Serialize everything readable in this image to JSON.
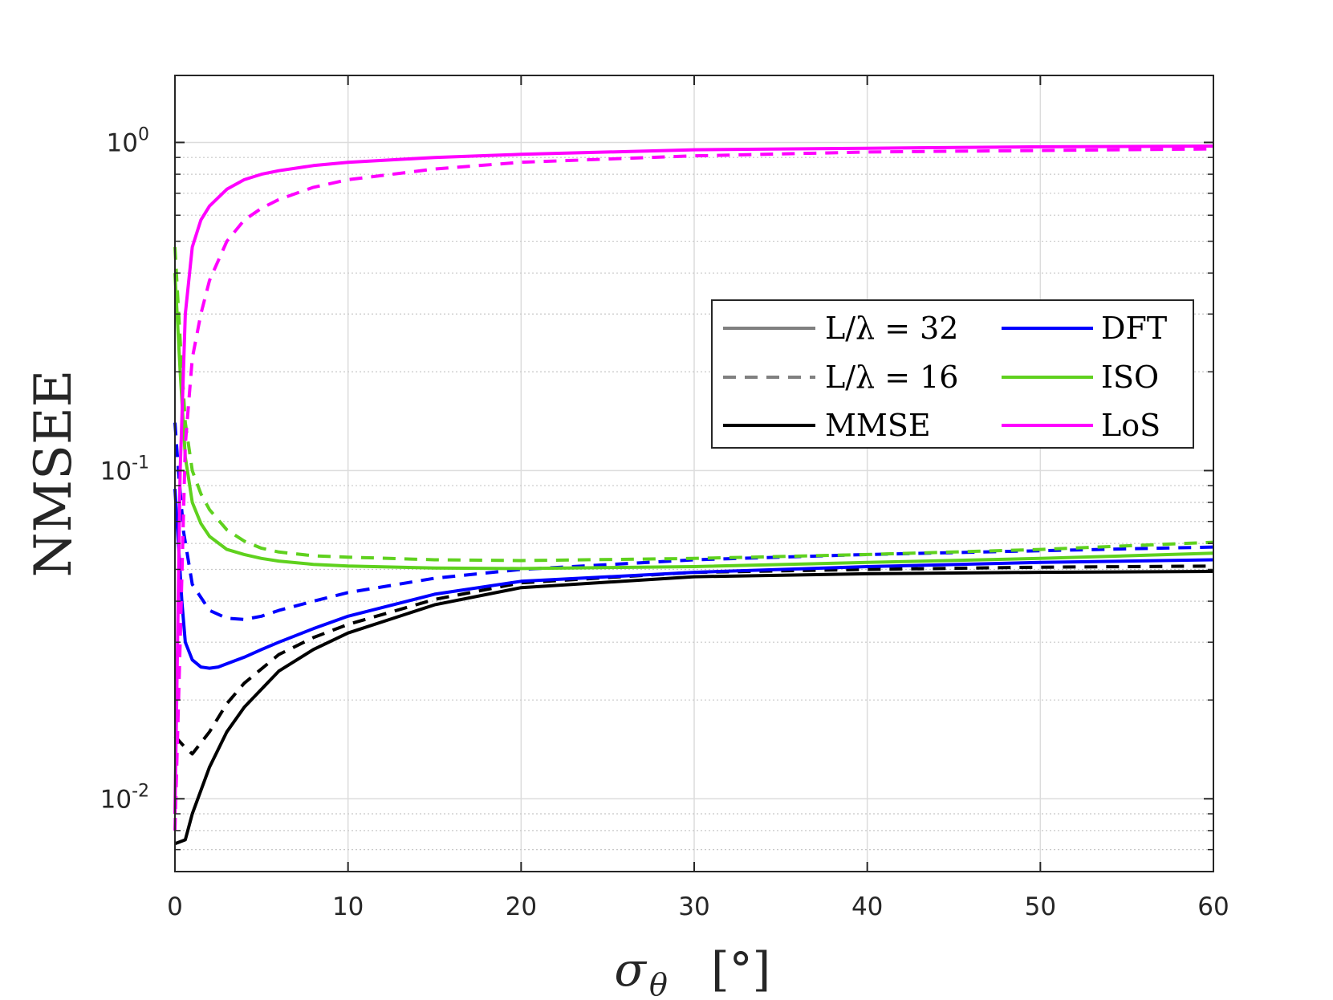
{
  "chart_data": {
    "type": "line",
    "title": "",
    "xlabel": "σ",
    "xlabel_subscript": "θ",
    "xlabel_unit": "[°]",
    "ylabel": "NMSEE",
    "xlim": [
      0,
      60
    ],
    "ylim": [
      0.006,
      1.6
    ],
    "yscale": "log",
    "grid": true,
    "minor_grid_y": true,
    "legend_position": "upper-right inset",
    "x_ticks": [
      0,
      10,
      20,
      30,
      40,
      50,
      60
    ],
    "y_ticks": [
      {
        "value": 0.01,
        "base": "10",
        "exp": "-2"
      },
      {
        "value": 0.1,
        "base": "10",
        "exp": "-1"
      },
      {
        "value": 1,
        "base": "10",
        "exp": "0"
      }
    ],
    "legend": [
      {
        "label": "L/λ = 32",
        "color": "#808080",
        "style": "solid"
      },
      {
        "label": "L/λ = 16",
        "color": "#808080",
        "style": "dashed"
      },
      {
        "label": "MMSE",
        "color": "#000000",
        "style": "solid"
      },
      {
        "label": "DFT",
        "color": "#0000ff",
        "style": "solid"
      },
      {
        "label": "ISO",
        "color": "#5fd11e",
        "style": "solid"
      },
      {
        "label": "LoS",
        "color": "#ff00ff",
        "style": "solid"
      }
    ],
    "series": [
      {
        "method": "MMSE",
        "array": "L/λ = 32",
        "color": "#000000",
        "dash": false,
        "x": [
          0,
          0.6,
          1,
          2,
          3,
          4,
          6,
          8,
          10,
          15,
          20,
          30,
          40,
          50,
          60
        ],
        "y": [
          0.0073,
          0.0075,
          0.009,
          0.0125,
          0.016,
          0.019,
          0.0245,
          0.0285,
          0.032,
          0.039,
          0.044,
          0.0475,
          0.0485,
          0.049,
          0.0493
        ]
      },
      {
        "method": "MMSE",
        "array": "L/λ = 16",
        "color": "#000000",
        "dash": true,
        "x": [
          0,
          0.5,
          1,
          2,
          3,
          4,
          6,
          8,
          10,
          15,
          20,
          30,
          40,
          50,
          60
        ],
        "y": [
          0.0155,
          0.0145,
          0.0137,
          0.016,
          0.0195,
          0.0225,
          0.0275,
          0.031,
          0.034,
          0.0405,
          0.0455,
          0.049,
          0.05,
          0.0508,
          0.0512
        ]
      },
      {
        "method": "DFT",
        "array": "L/λ = 32",
        "color": "#0000ff",
        "dash": false,
        "x": [
          0,
          0.2,
          0.4,
          0.6,
          1,
          1.5,
          2,
          2.5,
          3,
          4,
          5,
          6,
          8,
          10,
          15,
          20,
          30,
          40,
          50,
          60
        ],
        "y": [
          0.088,
          0.06,
          0.04,
          0.03,
          0.0265,
          0.0252,
          0.025,
          0.0252,
          0.0258,
          0.027,
          0.0285,
          0.03,
          0.033,
          0.036,
          0.042,
          0.046,
          0.049,
          0.051,
          0.0525,
          0.0535
        ]
      },
      {
        "method": "DFT",
        "array": "L/λ = 16",
        "color": "#0000ff",
        "dash": true,
        "x": [
          0,
          0.2,
          0.5,
          1,
          2,
          3,
          4,
          5,
          6,
          8,
          10,
          15,
          20,
          30,
          40,
          50,
          60
        ],
        "y": [
          0.14,
          0.1,
          0.065,
          0.045,
          0.0375,
          0.0355,
          0.0352,
          0.036,
          0.0375,
          0.04,
          0.0425,
          0.047,
          0.05,
          0.0535,
          0.0555,
          0.057,
          0.0585
        ]
      },
      {
        "method": "ISO",
        "array": "L/λ = 32",
        "color": "#5fd11e",
        "dash": false,
        "x": [
          0,
          0.3,
          0.6,
          1,
          1.5,
          2,
          3,
          4,
          5,
          6,
          8,
          10,
          15,
          20,
          30,
          40,
          50,
          60
        ],
        "y": [
          0.4,
          0.2,
          0.11,
          0.08,
          0.069,
          0.063,
          0.0575,
          0.0555,
          0.054,
          0.053,
          0.0518,
          0.0512,
          0.0505,
          0.0503,
          0.051,
          0.0525,
          0.054,
          0.056
        ]
      },
      {
        "method": "ISO",
        "array": "L/λ = 16",
        "color": "#5fd11e",
        "dash": true,
        "x": [
          0,
          0.3,
          0.6,
          1,
          1.5,
          2,
          3,
          4,
          5,
          6,
          8,
          10,
          15,
          20,
          30,
          40,
          50,
          60
        ],
        "y": [
          0.48,
          0.25,
          0.14,
          0.1,
          0.085,
          0.076,
          0.066,
          0.061,
          0.058,
          0.0565,
          0.055,
          0.0545,
          0.0535,
          0.0532,
          0.054,
          0.0555,
          0.0575,
          0.0605
        ]
      },
      {
        "method": "LoS",
        "array": "L/λ = 32",
        "color": "#ff00ff",
        "dash": false,
        "x": [
          0,
          0.3,
          0.6,
          1,
          1.5,
          2,
          3,
          4,
          5,
          6,
          8,
          10,
          15,
          20,
          30,
          40,
          50,
          60
        ],
        "y": [
          0.009,
          0.1,
          0.3,
          0.48,
          0.58,
          0.64,
          0.72,
          0.77,
          0.8,
          0.82,
          0.85,
          0.87,
          0.9,
          0.92,
          0.95,
          0.96,
          0.97,
          0.975
        ]
      },
      {
        "method": "LoS",
        "array": "L/λ = 16",
        "color": "#ff00ff",
        "dash": true,
        "x": [
          0,
          0.3,
          0.6,
          1,
          1.5,
          2,
          3,
          4,
          5,
          6,
          8,
          10,
          15,
          20,
          30,
          40,
          50,
          60
        ],
        "y": [
          0.008,
          0.03,
          0.12,
          0.22,
          0.3,
          0.38,
          0.5,
          0.58,
          0.63,
          0.67,
          0.73,
          0.77,
          0.83,
          0.87,
          0.91,
          0.935,
          0.945,
          0.955
        ]
      }
    ]
  }
}
